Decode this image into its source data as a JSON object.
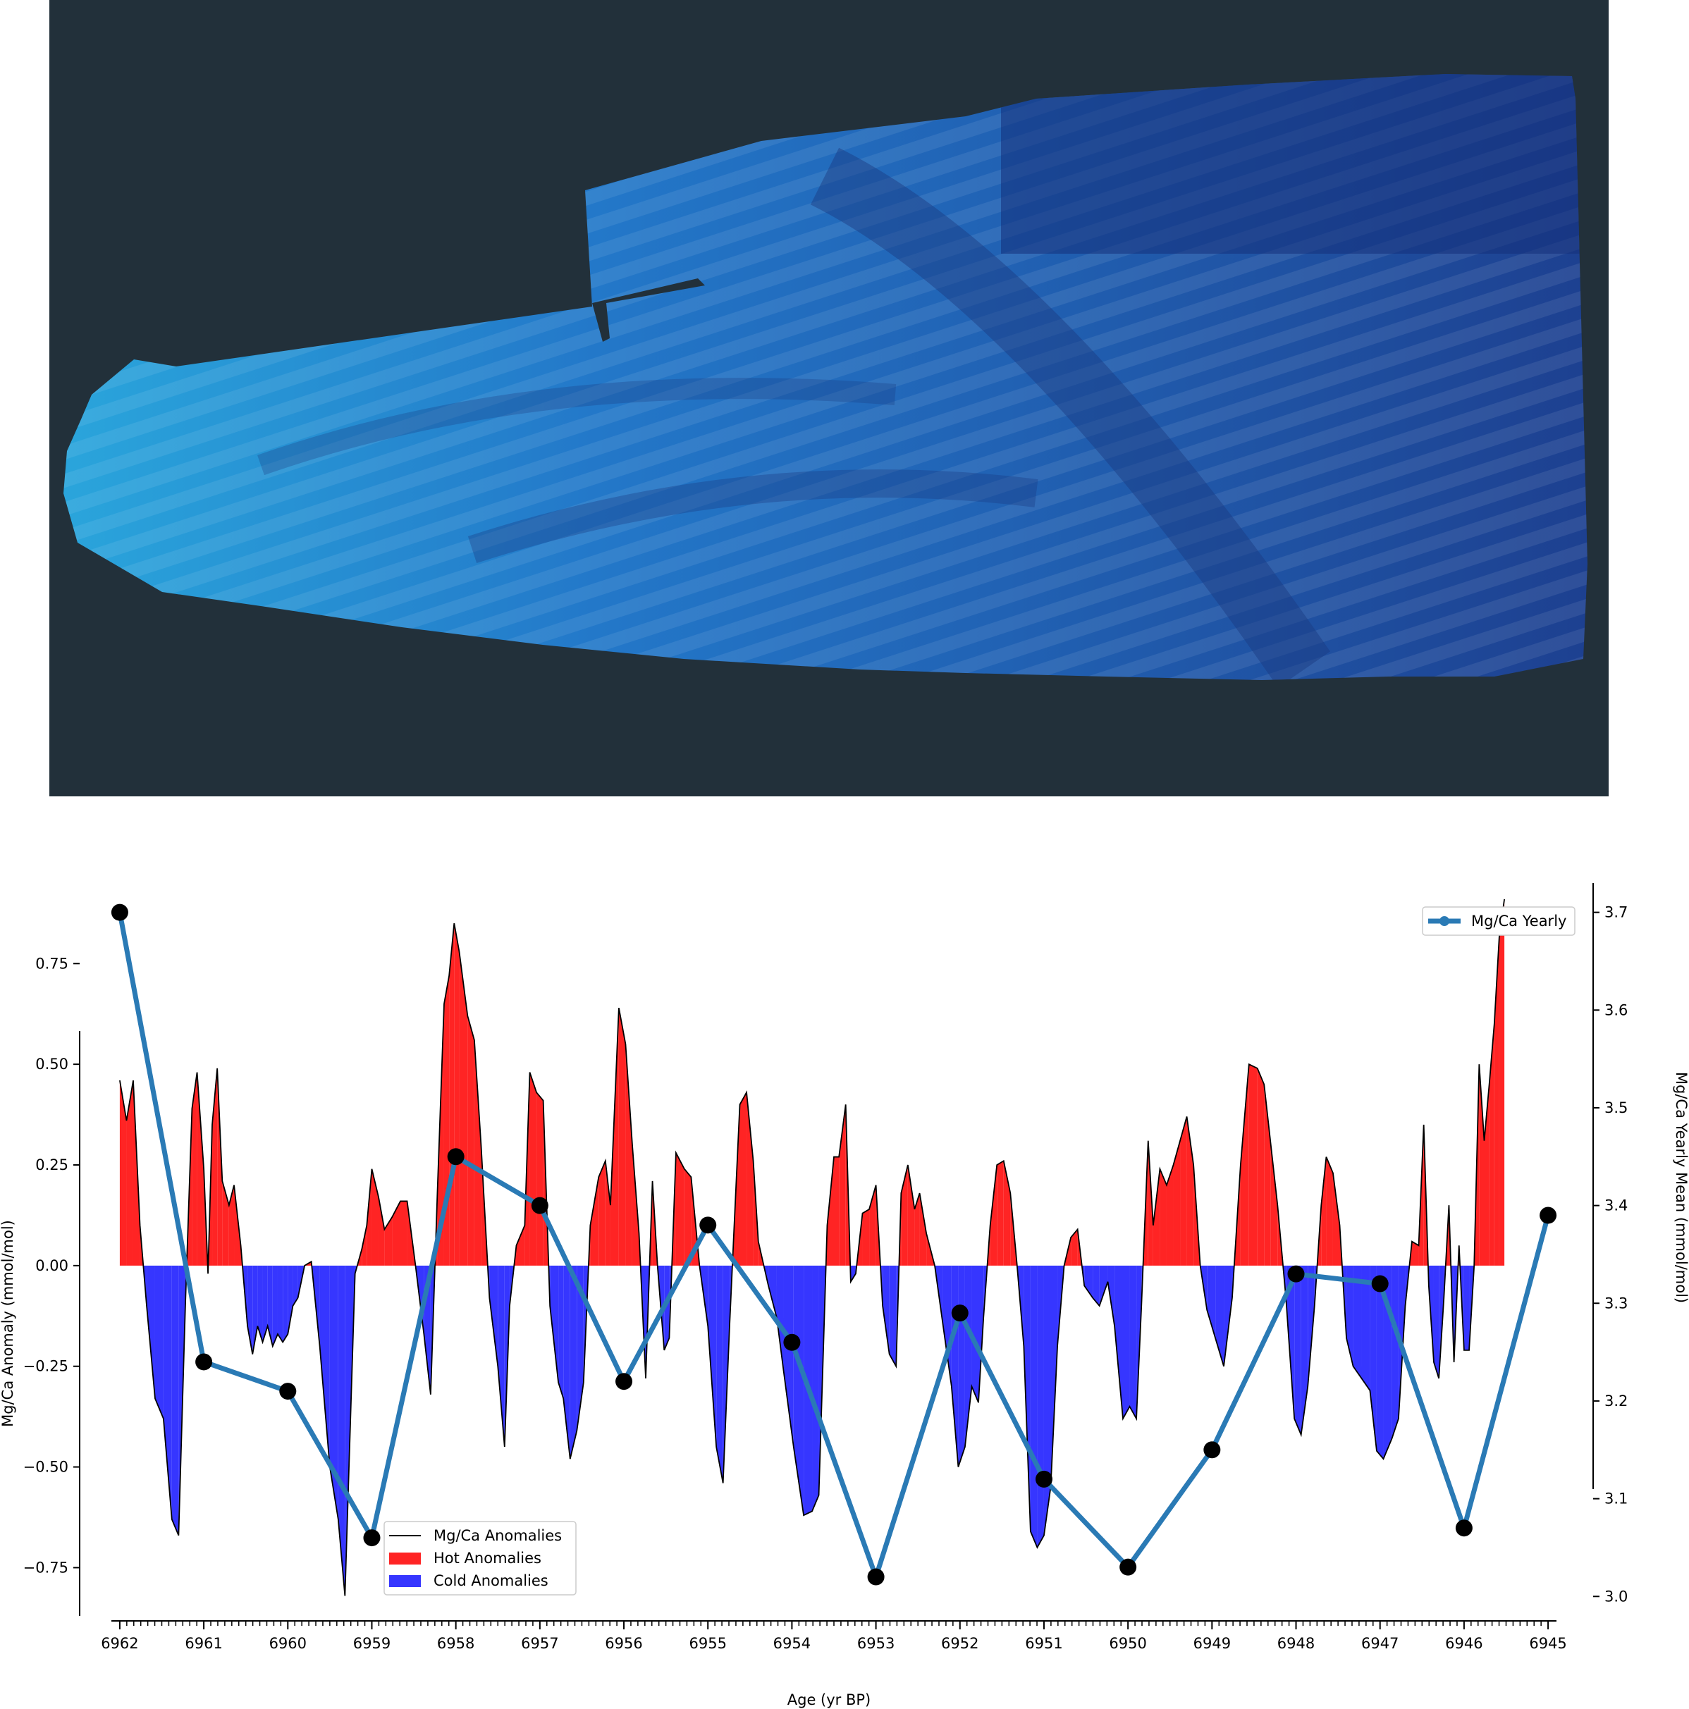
{
  "image": {
    "coral_slab": "coral slice X-ray image",
    "colors": {
      "background": "#22303a",
      "slab_light": "#2aa6dc",
      "slab_dark": "#1d3f8f"
    }
  },
  "legends": {
    "top": {
      "yearly": "Mg/Ca Yearly"
    },
    "bottom": {
      "anomalies": "Mg/Ca Anomalies",
      "hot": "Hot Anomalies",
      "cold": "Cold Anomalies"
    }
  },
  "colors": {
    "hot": "#ff2424",
    "cold": "#3636ff",
    "yearly": "#2a7ab5",
    "markers": "#000000",
    "anomaly_line": "#000000"
  },
  "chart_data": {
    "type": "area",
    "xlabel": "Age (yr BP)",
    "ylabel_left": "Mg/Ca Anomaly (mmol/mol)",
    "ylabel_right": "Mg/Ca Yearly Mean (mmol/mol)",
    "x_reversed": true,
    "xlim": [
      6962.1,
      6944.9
    ],
    "ylim_left": [
      -0.87,
      0.95
    ],
    "ylim_right": [
      2.98,
      3.73
    ],
    "x_major_ticks": [
      6962,
      6961,
      6960,
      6959,
      6958,
      6957,
      6956,
      6955,
      6954,
      6953,
      6952,
      6951,
      6950,
      6949,
      6948,
      6947,
      6946,
      6945
    ],
    "y_left_ticks": [
      -0.75,
      -0.5,
      -0.25,
      0.0,
      0.25,
      0.5,
      0.75
    ],
    "y_left_tick_labels": [
      "−0.75",
      "−0.50",
      "−0.25",
      "0.00",
      "0.25",
      "0.50",
      "0.75"
    ],
    "y_right_ticks": [
      3.0,
      3.1,
      3.2,
      3.3,
      3.4,
      3.5,
      3.6,
      3.7
    ],
    "y_right_tick_labels": [
      "3.0",
      "3.1",
      "3.2",
      "3.3",
      "3.4",
      "3.5",
      "3.6",
      "3.7"
    ],
    "grid": false,
    "legend_top": "upper right",
    "legend_bottom": "lower left",
    "anomaly_series": {
      "name": "Mg/Ca Anomalies",
      "points": [
        [
          6962.0,
          0.46
        ],
        [
          6961.92,
          0.36
        ],
        [
          6961.84,
          0.46
        ],
        [
          6961.76,
          0.1
        ],
        [
          6961.68,
          -0.1
        ],
        [
          6961.58,
          -0.33
        ],
        [
          6961.48,
          -0.38
        ],
        [
          6961.38,
          -0.63
        ],
        [
          6961.3,
          -0.67
        ],
        [
          6961.22,
          -0.1
        ],
        [
          6961.14,
          0.39
        ],
        [
          6961.08,
          0.48
        ],
        [
          6961.0,
          0.24
        ],
        [
          6960.95,
          -0.02
        ],
        [
          6960.9,
          0.35
        ],
        [
          6960.84,
          0.49
        ],
        [
          6960.78,
          0.21
        ],
        [
          6960.7,
          0.15
        ],
        [
          6960.64,
          0.2
        ],
        [
          6960.56,
          0.05
        ],
        [
          6960.48,
          -0.15
        ],
        [
          6960.42,
          -0.22
        ],
        [
          6960.36,
          -0.15
        ],
        [
          6960.3,
          -0.19
        ],
        [
          6960.24,
          -0.15
        ],
        [
          6960.18,
          -0.2
        ],
        [
          6960.12,
          -0.17
        ],
        [
          6960.06,
          -0.19
        ],
        [
          6960.0,
          -0.17
        ],
        [
          6959.94,
          -0.1
        ],
        [
          6959.88,
          -0.08
        ],
        [
          6959.8,
          0.0
        ],
        [
          6959.72,
          0.01
        ],
        [
          6959.62,
          -0.2
        ],
        [
          6959.5,
          -0.5
        ],
        [
          6959.4,
          -0.63
        ],
        [
          6959.32,
          -0.82
        ],
        [
          6959.2,
          -0.02
        ],
        [
          6959.12,
          0.04
        ],
        [
          6959.06,
          0.1
        ],
        [
          6959.0,
          0.24
        ],
        [
          6958.92,
          0.17
        ],
        [
          6958.85,
          0.09
        ],
        [
          6958.76,
          0.12
        ],
        [
          6958.66,
          0.16
        ],
        [
          6958.58,
          0.16
        ],
        [
          6958.48,
          0.0
        ],
        [
          6958.38,
          -0.17
        ],
        [
          6958.3,
          -0.32
        ],
        [
          6958.22,
          0.18
        ],
        [
          6958.14,
          0.65
        ],
        [
          6958.08,
          0.72
        ],
        [
          6958.02,
          0.85
        ],
        [
          6957.96,
          0.78
        ],
        [
          6957.86,
          0.62
        ],
        [
          6957.78,
          0.56
        ],
        [
          6957.7,
          0.3
        ],
        [
          6957.6,
          -0.08
        ],
        [
          6957.5,
          -0.25
        ],
        [
          6957.42,
          -0.45
        ],
        [
          6957.36,
          -0.1
        ],
        [
          6957.28,
          0.05
        ],
        [
          6957.18,
          0.1
        ],
        [
          6957.12,
          0.48
        ],
        [
          6957.04,
          0.43
        ],
        [
          6956.96,
          0.41
        ],
        [
          6956.88,
          -0.1
        ],
        [
          6956.78,
          -0.29
        ],
        [
          6956.72,
          -0.33
        ],
        [
          6956.64,
          -0.48
        ],
        [
          6956.56,
          -0.41
        ],
        [
          6956.48,
          -0.29
        ],
        [
          6956.4,
          0.1
        ],
        [
          6956.3,
          0.22
        ],
        [
          6956.22,
          0.26
        ],
        [
          6956.16,
          0.15
        ],
        [
          6956.06,
          0.64
        ],
        [
          6955.98,
          0.55
        ],
        [
          6955.9,
          0.3
        ],
        [
          6955.82,
          0.08
        ],
        [
          6955.74,
          -0.28
        ],
        [
          6955.66,
          0.21
        ],
        [
          6955.6,
          0.0
        ],
        [
          6955.52,
          -0.21
        ],
        [
          6955.46,
          -0.18
        ],
        [
          6955.38,
          0.28
        ],
        [
          6955.28,
          0.24
        ],
        [
          6955.2,
          0.22
        ],
        [
          6955.1,
          0.0
        ],
        [
          6955.0,
          -0.15
        ],
        [
          6954.9,
          -0.45
        ],
        [
          6954.82,
          -0.54
        ],
        [
          6954.74,
          -0.14
        ],
        [
          6954.62,
          0.4
        ],
        [
          6954.54,
          0.43
        ],
        [
          6954.46,
          0.26
        ],
        [
          6954.4,
          0.06
        ],
        [
          6954.28,
          -0.05
        ],
        [
          6954.18,
          -0.13
        ],
        [
          6954.1,
          -0.26
        ],
        [
          6953.98,
          -0.45
        ],
        [
          6953.86,
          -0.62
        ],
        [
          6953.76,
          -0.61
        ],
        [
          6953.68,
          -0.57
        ],
        [
          6953.58,
          0.1
        ],
        [
          6953.5,
          0.27
        ],
        [
          6953.44,
          0.27
        ],
        [
          6953.36,
          0.4
        ],
        [
          6953.3,
          -0.04
        ],
        [
          6953.24,
          -0.02
        ],
        [
          6953.16,
          0.13
        ],
        [
          6953.08,
          0.14
        ],
        [
          6953.0,
          0.2
        ],
        [
          6952.92,
          -0.1
        ],
        [
          6952.84,
          -0.22
        ],
        [
          6952.76,
          -0.25
        ],
        [
          6952.7,
          0.18
        ],
        [
          6952.62,
          0.25
        ],
        [
          6952.54,
          0.14
        ],
        [
          6952.48,
          0.18
        ],
        [
          6952.4,
          0.08
        ],
        [
          6952.3,
          0.0
        ],
        [
          6952.2,
          -0.15
        ],
        [
          6952.1,
          -0.3
        ],
        [
          6952.02,
          -0.5
        ],
        [
          6951.94,
          -0.45
        ],
        [
          6951.86,
          -0.3
        ],
        [
          6951.78,
          -0.34
        ],
        [
          6951.72,
          -0.13
        ],
        [
          6951.64,
          0.1
        ],
        [
          6951.56,
          0.25
        ],
        [
          6951.48,
          0.26
        ],
        [
          6951.4,
          0.18
        ],
        [
          6951.32,
          0.0
        ],
        [
          6951.24,
          -0.2
        ],
        [
          6951.16,
          -0.66
        ],
        [
          6951.08,
          -0.7
        ],
        [
          6951.0,
          -0.67
        ],
        [
          6950.92,
          -0.55
        ],
        [
          6950.84,
          -0.2
        ],
        [
          6950.76,
          0.0
        ],
        [
          6950.68,
          0.07
        ],
        [
          6950.6,
          0.09
        ],
        [
          6950.52,
          -0.05
        ],
        [
          6950.42,
          -0.08
        ],
        [
          6950.34,
          -0.1
        ],
        [
          6950.24,
          -0.04
        ],
        [
          6950.16,
          -0.15
        ],
        [
          6950.06,
          -0.38
        ],
        [
          6949.98,
          -0.35
        ],
        [
          6949.9,
          -0.38
        ],
        [
          6949.84,
          -0.1
        ],
        [
          6949.76,
          0.31
        ],
        [
          6949.7,
          0.1
        ],
        [
          6949.62,
          0.24
        ],
        [
          6949.54,
          0.2
        ],
        [
          6949.46,
          0.25
        ],
        [
          6949.38,
          0.31
        ],
        [
          6949.3,
          0.37
        ],
        [
          6949.22,
          0.25
        ],
        [
          6949.14,
          0.0
        ],
        [
          6949.06,
          -0.11
        ],
        [
          6948.96,
          -0.18
        ],
        [
          6948.86,
          -0.25
        ],
        [
          6948.76,
          -0.08
        ],
        [
          6948.66,
          0.25
        ],
        [
          6948.56,
          0.5
        ],
        [
          6948.46,
          0.49
        ],
        [
          6948.38,
          0.45
        ],
        [
          6948.3,
          0.3
        ],
        [
          6948.22,
          0.15
        ],
        [
          6948.12,
          -0.08
        ],
        [
          6948.02,
          -0.38
        ],
        [
          6947.94,
          -0.42
        ],
        [
          6947.86,
          -0.3
        ],
        [
          6947.78,
          -0.1
        ],
        [
          6947.7,
          0.15
        ],
        [
          6947.64,
          0.27
        ],
        [
          6947.56,
          0.23
        ],
        [
          6947.48,
          0.1
        ],
        [
          6947.4,
          -0.18
        ],
        [
          6947.32,
          -0.25
        ],
        [
          6947.22,
          -0.28
        ],
        [
          6947.12,
          -0.31
        ],
        [
          6947.04,
          -0.46
        ],
        [
          6946.96,
          -0.48
        ],
        [
          6946.86,
          -0.43
        ],
        [
          6946.78,
          -0.38
        ],
        [
          6946.7,
          -0.1
        ],
        [
          6946.62,
          0.06
        ],
        [
          6946.54,
          0.05
        ],
        [
          6946.48,
          0.35
        ],
        [
          6946.42,
          -0.05
        ],
        [
          6946.36,
          -0.24
        ],
        [
          6946.3,
          -0.28
        ],
        [
          6946.24,
          -0.08
        ],
        [
          6946.18,
          0.15
        ],
        [
          6946.12,
          -0.24
        ],
        [
          6946.06,
          0.05
        ],
        [
          6946.0,
          -0.21
        ],
        [
          6945.94,
          -0.21
        ],
        [
          6945.88,
          0.0
        ],
        [
          6945.82,
          0.5
        ],
        [
          6945.76,
          0.31
        ],
        [
          6945.7,
          0.45
        ],
        [
          6945.64,
          0.6
        ],
        [
          6945.58,
          0.82
        ],
        [
          6945.52,
          0.91
        ]
      ]
    },
    "yearly_series": {
      "name": "Mg/Ca Yearly",
      "x": [
        6962,
        6961,
        6960,
        6959,
        6958,
        6957,
        6956,
        6955,
        6954,
        6953,
        6952,
        6951,
        6950,
        6949,
        6948,
        6947,
        6946,
        6945
      ],
      "y": [
        3.7,
        3.24,
        3.21,
        3.06,
        3.45,
        3.4,
        3.22,
        3.38,
        3.26,
        3.02,
        3.29,
        3.12,
        3.03,
        3.15,
        3.33,
        3.32,
        3.07,
        3.39
      ]
    }
  }
}
